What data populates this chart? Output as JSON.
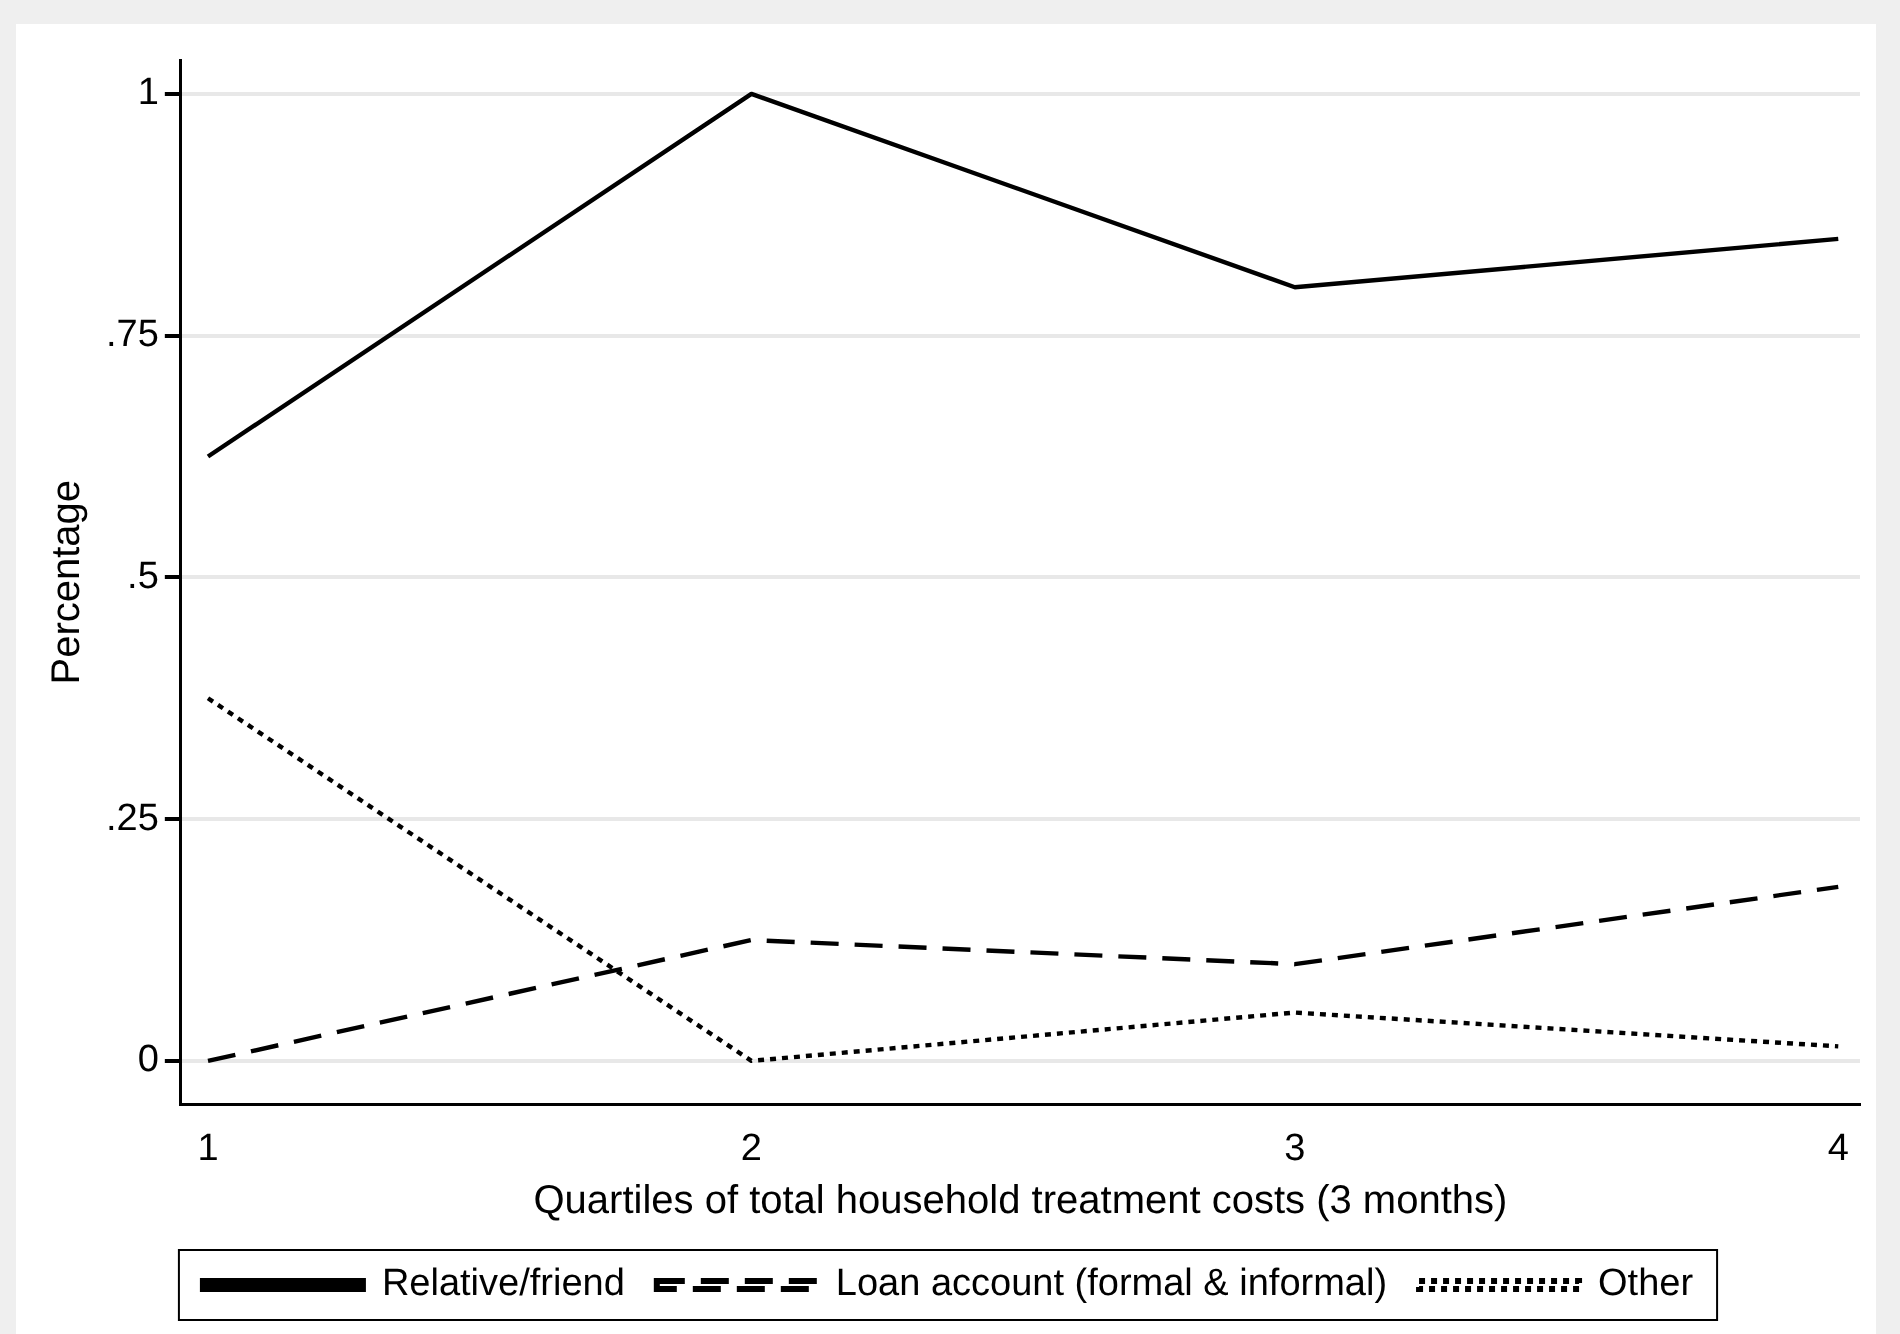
{
  "chart_data": {
    "type": "line",
    "xlabel": "Quartiles of total household treatment costs (3 months)",
    "ylabel": "Percentage",
    "x": [
      1,
      2,
      3,
      4
    ],
    "series": [
      {
        "name": "Relative/friend",
        "color": "#000000",
        "line_style": "solid",
        "values": [
          0.625,
          1,
          0.8,
          0.85
        ]
      },
      {
        "name": "Loan account (formal & informal)",
        "color": "#000000",
        "line_style": "dashed",
        "values": [
          0,
          0.125,
          0.1,
          0.18
        ]
      },
      {
        "name": "Other",
        "color": "#000000",
        "line_style": "dotted",
        "values": [
          0.375,
          0,
          0.05,
          0.015
        ]
      }
    ],
    "xlim": [
      0.95,
      4.04
    ],
    "xticks": [
      1,
      2,
      3,
      4
    ],
    "ylim": [
      -0.045,
      1.035
    ],
    "yticks": [
      0,
      {
        "value": 0.25,
        "label": ".25"
      },
      {
        "value": 0.5,
        "label": ".5"
      },
      {
        "value": 0.75,
        "label": ".75"
      },
      1
    ],
    "grid": "y",
    "legend": "bottom",
    "marker": "none"
  }
}
